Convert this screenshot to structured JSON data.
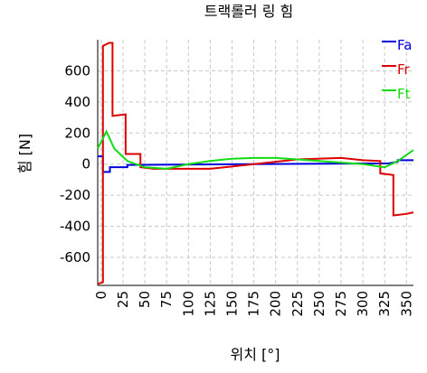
{
  "chart_data": {
    "type": "line",
    "title": "트랙롤러 링 힘",
    "x_label": "위치 [°]",
    "y_label": "힘 [N]",
    "xlim": [
      -4,
      358
    ],
    "ylim": [
      -780,
      800
    ],
    "xticks": [
      0,
      25,
      50,
      75,
      100,
      125,
      150,
      175,
      200,
      225,
      250,
      275,
      300,
      325,
      350
    ],
    "yticks": [
      600,
      400,
      200,
      0,
      -200,
      -400,
      -600
    ],
    "grid": true,
    "legend": "top-right",
    "series": [
      {
        "name": "Fa",
        "color": "#0000dd",
        "x": [
          -4,
          2,
          2,
          10,
          10,
          30,
          30,
          330,
          340,
          340,
          358
        ],
        "values": [
          50,
          50,
          -50,
          -50,
          -20,
          -20,
          -5,
          5,
          15,
          25,
          25
        ]
      },
      {
        "name": "Fr",
        "color": "#dd0000",
        "x": [
          -4,
          2,
          2,
          9,
          9,
          13,
          13,
          28,
          28,
          45,
          45,
          60,
          125,
          175,
          225,
          275,
          300,
          320,
          320,
          335,
          335,
          350,
          358
        ],
        "values": [
          -770,
          -760,
          760,
          780,
          780,
          780,
          310,
          320,
          65,
          65,
          -20,
          -30,
          -30,
          0,
          30,
          40,
          25,
          20,
          -60,
          -70,
          -330,
          -320,
          -310
        ]
      },
      {
        "name": "Ft",
        "color": "#11dd11",
        "x": [
          -4,
          6,
          15,
          30,
          50,
          75,
          100,
          125,
          150,
          175,
          200,
          225,
          250,
          275,
          300,
          325,
          340,
          358
        ],
        "values": [
          100,
          210,
          100,
          20,
          -20,
          -30,
          0,
          20,
          35,
          40,
          40,
          30,
          20,
          10,
          0,
          -20,
          20,
          90
        ]
      }
    ]
  }
}
